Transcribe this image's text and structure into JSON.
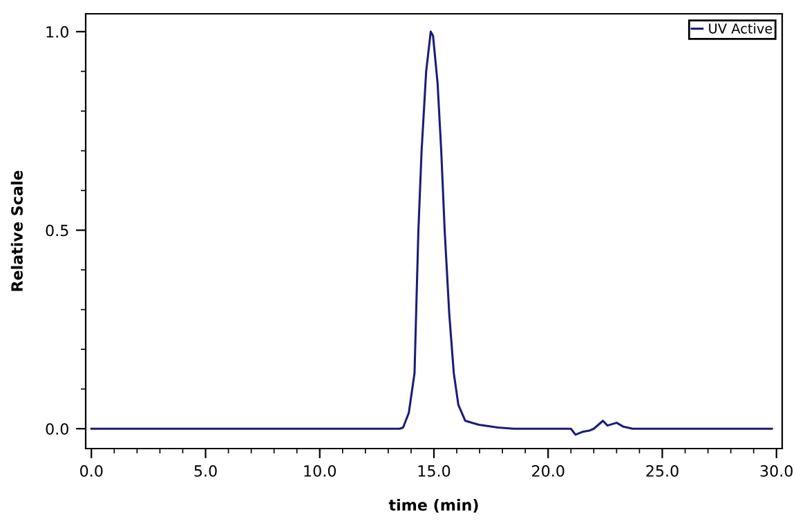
{
  "chart_data": {
    "type": "line",
    "xlabel": "time (min)",
    "ylabel": "Relative Scale",
    "series": [
      {
        "name": "UV Active",
        "color": "#1c1c7a",
        "x": [
          0.0,
          13.5,
          13.65,
          13.9,
          14.15,
          14.32,
          14.46,
          14.66,
          14.86,
          14.96,
          15.16,
          15.32,
          15.47,
          15.67,
          15.87,
          16.07,
          16.37,
          16.97,
          17.8,
          18.5,
          21.0,
          21.2,
          21.5,
          21.8,
          22.0,
          22.4,
          22.6,
          23.0,
          23.3,
          23.7,
          29.8
        ],
        "values": [
          0.0,
          0.0,
          0.003,
          0.04,
          0.14,
          0.5,
          0.7,
          0.9,
          1.0,
          0.99,
          0.87,
          0.7,
          0.5,
          0.29,
          0.14,
          0.06,
          0.02,
          0.01,
          0.003,
          0.0,
          0.0,
          -0.015,
          -0.008,
          -0.005,
          0.0,
          0.02,
          0.008,
          0.015,
          0.005,
          0.0,
          0.0
        ]
      }
    ],
    "xlim": [
      -0.25,
      30.25
    ],
    "ylim": [
      -0.05,
      1.045
    ],
    "xticks": [
      {
        "value": 0,
        "label": "0.0"
      },
      {
        "value": 1,
        "label": null
      },
      {
        "value": 2,
        "label": null
      },
      {
        "value": 3,
        "label": null
      },
      {
        "value": 4,
        "label": null
      },
      {
        "value": 5,
        "label": "5.0"
      },
      {
        "value": 6,
        "label": null
      },
      {
        "value": 7,
        "label": null
      },
      {
        "value": 8,
        "label": null
      },
      {
        "value": 9,
        "label": null
      },
      {
        "value": 10,
        "label": "10.0"
      },
      {
        "value": 11,
        "label": null
      },
      {
        "value": 12,
        "label": null
      },
      {
        "value": 13,
        "label": null
      },
      {
        "value": 14,
        "label": null
      },
      {
        "value": 15,
        "label": "15.0"
      },
      {
        "value": 16,
        "label": null
      },
      {
        "value": 17,
        "label": null
      },
      {
        "value": 18,
        "label": null
      },
      {
        "value": 19,
        "label": null
      },
      {
        "value": 20,
        "label": "20.0"
      },
      {
        "value": 21,
        "label": null
      },
      {
        "value": 22,
        "label": null
      },
      {
        "value": 23,
        "label": null
      },
      {
        "value": 24,
        "label": null
      },
      {
        "value": 25,
        "label": "25.0"
      },
      {
        "value": 26,
        "label": null
      },
      {
        "value": 27,
        "label": null
      },
      {
        "value": 28,
        "label": null
      },
      {
        "value": 29,
        "label": null
      },
      {
        "value": 30,
        "label": "30.0"
      }
    ],
    "yticks": [
      {
        "value": 0,
        "label": "0.0"
      },
      {
        "value": 0.1,
        "label": null
      },
      {
        "value": 0.2,
        "label": null
      },
      {
        "value": 0.3,
        "label": null
      },
      {
        "value": 0.4,
        "label": null
      },
      {
        "value": 0.5,
        "label": "0.5"
      },
      {
        "value": 0.6,
        "label": null
      },
      {
        "value": 0.7,
        "label": null
      },
      {
        "value": 0.8,
        "label": null
      },
      {
        "value": 0.9,
        "label": null
      },
      {
        "value": 1.0,
        "label": "1.0"
      }
    ],
    "grid": false,
    "legend": "top right",
    "marker": "none",
    "line_style": "solid"
  }
}
